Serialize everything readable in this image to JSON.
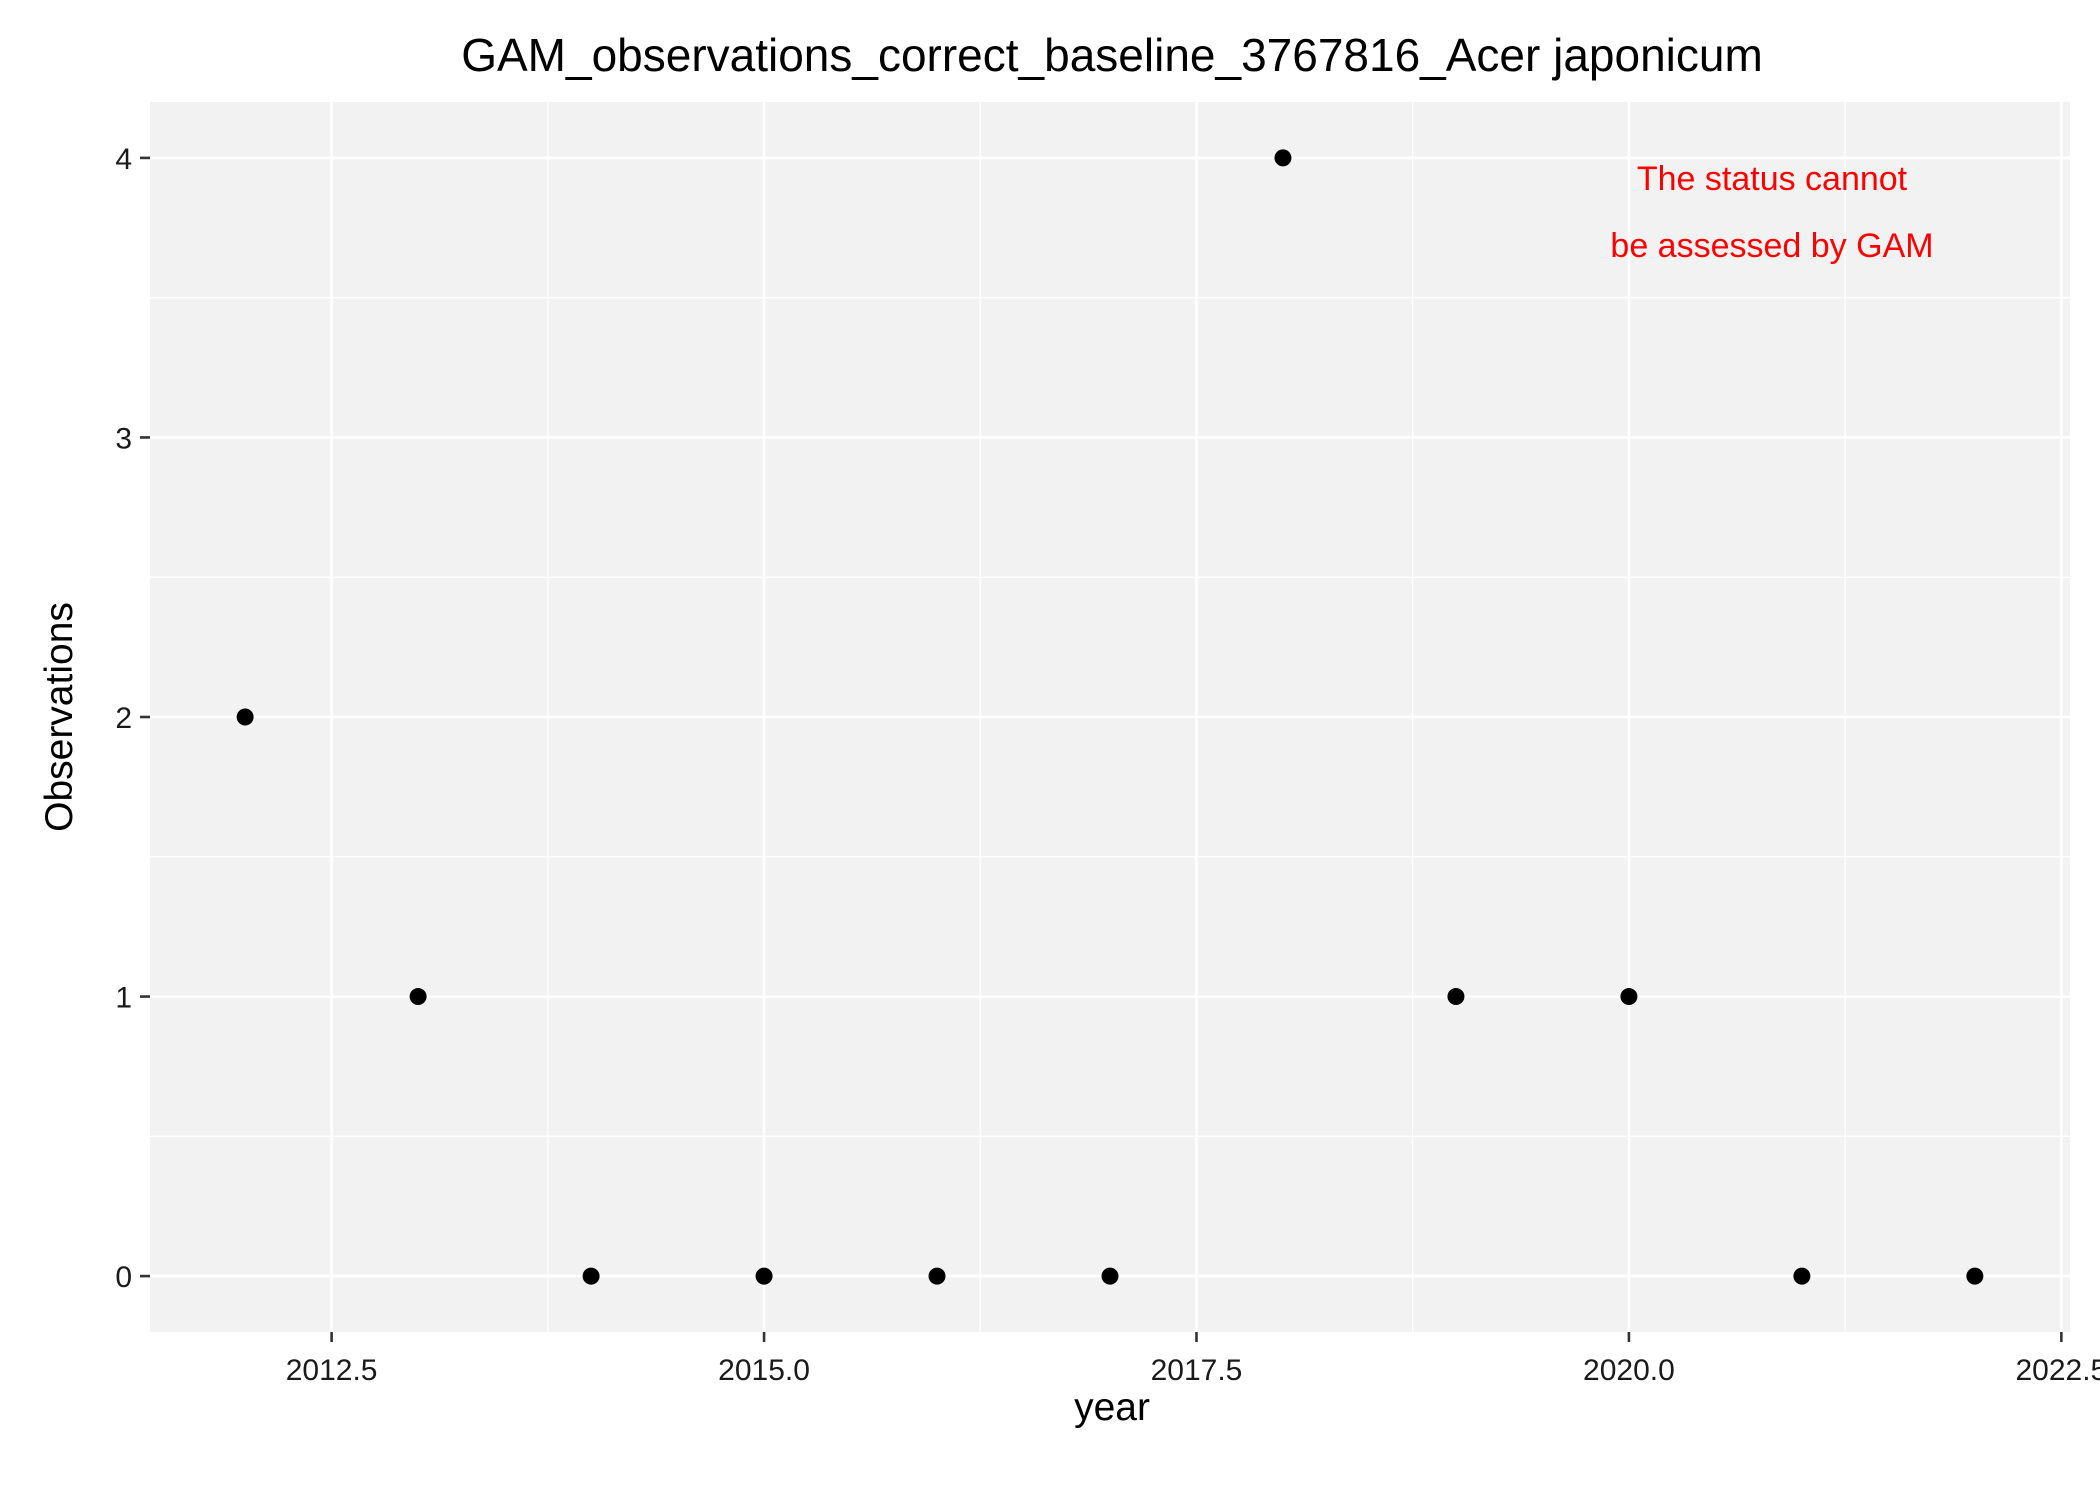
{
  "chart_data": {
    "type": "scatter",
    "title": "GAM_observations_correct_baseline_3767816_Acer japonicum",
    "xlabel": "year",
    "ylabel": "Observations",
    "xlim": [
      2011.45,
      2022.55
    ],
    "ylim": [
      -0.2,
      4.2
    ],
    "x_ticks": [
      2012.5,
      2015.0,
      2017.5,
      2020.0,
      2022.5
    ],
    "x_tick_labels": [
      "2012.5",
      "2015.0",
      "2017.5",
      "2020.0",
      "2022.5"
    ],
    "y_ticks": [
      0,
      1,
      2,
      3,
      4
    ],
    "y_tick_labels": [
      "0",
      "1",
      "2",
      "3",
      "4"
    ],
    "grid": true,
    "x": [
      2012,
      2013,
      2014,
      2015,
      2016,
      2017,
      2018,
      2019,
      2020,
      2021,
      2022
    ],
    "y": [
      2,
      1,
      0,
      0,
      0,
      0,
      4,
      1,
      1,
      0,
      0
    ],
    "annotation": [
      "The status cannot",
      "be assessed by GAM"
    ],
    "annotation_color": "#ff0000",
    "panel_background": "#f2f2f2",
    "point_color": "#000000"
  }
}
